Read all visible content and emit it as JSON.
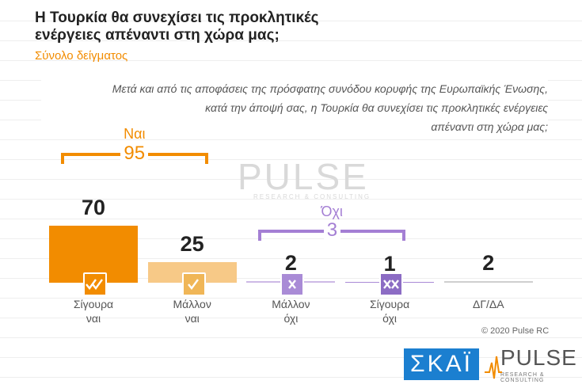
{
  "header": {
    "title": "Η Τουρκία θα συνεχίσει τις προκλητικές\nενέργειες απέναντι στη χώρα μας;",
    "subtitle": "Σύνολο δείγματος"
  },
  "chart_data": {
    "type": "bar",
    "question": "Μετά και από τις αποφάσεις της πρόσφατης συνόδου κορυφής της Ευρωπαϊκής Ένωσης,\nκατά την άποψή σας, η Τουρκία θα συνεχίσει τις προκλητικές ενέργειες\nαπέναντι στη χώρα μας;",
    "categories": [
      "Σίγουρα\nναι",
      "Μάλλον\nναι",
      "Μάλλον\nόχι",
      "Σίγουρα\nόχι",
      "ΔΓ/ΔΑ"
    ],
    "values": [
      70,
      25,
      2,
      1,
      2
    ],
    "colors": [
      "#f28c00",
      "#f7c987",
      "#cdb9e6",
      "#a98bd6",
      "#cfcfcf"
    ],
    "groups": [
      {
        "label": "Ναι",
        "value": 95,
        "color": "#f28c00"
      },
      {
        "label": "Όχι",
        "value": 3,
        "color": "#a47fd4"
      }
    ]
  },
  "footer": {
    "copyright": "© 2020 Pulse RC",
    "skai_logo": "ΣΚΑΪ",
    "pulse_logo": "PULSE",
    "pulse_tagline": "RESEARCH & CONSULTING"
  }
}
